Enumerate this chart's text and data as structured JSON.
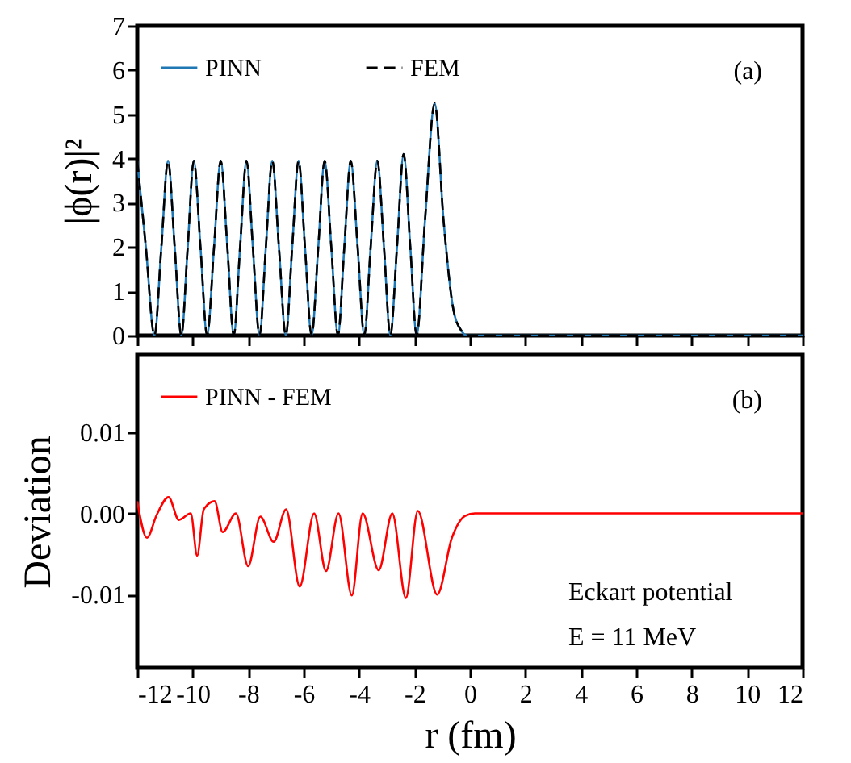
{
  "chart_data": [
    {
      "type": "line",
      "ylabel": "|ϕ(r)|²",
      "xlim": [
        -12,
        12
      ],
      "ylim": [
        0,
        7
      ],
      "xticks": [
        -12,
        -10,
        -8,
        -6,
        -4,
        -2,
        0,
        2,
        4,
        6,
        8,
        10,
        12
      ],
      "yticks": [
        0,
        1,
        2,
        3,
        4,
        5,
        6,
        7
      ],
      "tick_labels": "y",
      "legend": "top left",
      "annotations": [
        "(a)"
      ],
      "x": [
        -12,
        -11.69,
        -11.38,
        -11.13,
        -10.89,
        -10.65,
        -10.41,
        -10.18,
        -9.96,
        -9.72,
        -9.48,
        -9.23,
        -8.99,
        -8.75,
        -8.52,
        -8.29,
        -8.06,
        -7.83,
        -7.59,
        -7.36,
        -7.13,
        -6.89,
        -6.64,
        -6.41,
        -6.18,
        -5.95,
        -5.71,
        -5.47,
        -5.24,
        -5.0,
        -4.76,
        -4.53,
        -4.3,
        -4.05,
        -3.81,
        -3.58,
        -3.34,
        -3.1,
        -2.87,
        -2.63,
        -2.39,
        -2.15,
        -1.92,
        -1.62,
        -1.27,
        -0.95,
        -0.6,
        -0.3,
        -0.1,
        12
      ],
      "series": [
        {
          "name": "PINN",
          "color": "#1f77b4",
          "line_style": "solid",
          "values": [
            3.95,
            2,
            0,
            2,
            3.95,
            2,
            0,
            2,
            3.95,
            2,
            0,
            2,
            3.95,
            2,
            0,
            2,
            3.95,
            2,
            0,
            2,
            3.95,
            2,
            0,
            2,
            3.95,
            2,
            0,
            2,
            3.95,
            2,
            0,
            2,
            3.95,
            2,
            0,
            2,
            3.95,
            2,
            0,
            2,
            4.1,
            2,
            0,
            2.6,
            5.25,
            2.6,
            0.6,
            0.1,
            0,
            0
          ]
        },
        {
          "name": "FEM",
          "color": "#000000",
          "line_style": "dashed",
          "values": [
            3.95,
            2,
            0,
            2,
            3.95,
            2,
            0,
            2,
            3.95,
            2,
            0,
            2,
            3.95,
            2,
            0,
            2,
            3.95,
            2,
            0,
            2,
            3.95,
            2,
            0,
            2,
            3.95,
            2,
            0,
            2,
            3.95,
            2,
            0,
            2,
            3.95,
            2,
            0,
            2,
            3.95,
            2,
            0,
            2,
            4.1,
            2,
            0,
            2.6,
            5.25,
            2.6,
            0.6,
            0.1,
            0,
            0
          ]
        }
      ]
    },
    {
      "type": "line",
      "xlabel": "r (fm)",
      "ylabel": "Deviation",
      "xlim": [
        -12,
        12
      ],
      "ylim": [
        -0.019,
        0.0195
      ],
      "xticks": [
        -12,
        -10,
        -8,
        -6,
        -4,
        -2,
        0,
        2,
        4,
        6,
        8,
        10,
        12
      ],
      "yticks": [
        -0.01,
        {
          "value": 0,
          "label": "0.00"
        },
        0.01
      ],
      "legend": "top left",
      "annotations": [
        "(b)",
        "Eckart potential",
        "E = 11 MeV"
      ],
      "x": [
        -12,
        -11.65,
        -11.3,
        -10.87,
        -10.5,
        -10.07,
        -9.84,
        -9.6,
        -9.21,
        -8.92,
        -8.44,
        -8.0,
        -7.56,
        -7.08,
        -6.63,
        -6.14,
        -5.62,
        -5.19,
        -4.74,
        -4.26,
        -3.87,
        -3.29,
        -2.8,
        -2.31,
        -1.88,
        -1.18,
        -0.65,
        -0.17,
        0.18,
        12
      ],
      "series": [
        {
          "name": "PINN - FEM",
          "color": "#ff0000",
          "values": [
            0.0015,
            -0.003,
            -0.0002,
            0.002,
            -0.0008,
            0.0,
            -0.0052,
            0.0005,
            0.0015,
            -0.0023,
            0.0,
            -0.0065,
            -0.0004,
            -0.0035,
            0.0005,
            -0.009,
            0.0,
            -0.0071,
            0.0,
            -0.0101,
            0.0,
            -0.007,
            0.0,
            -0.0104,
            0.0003,
            -0.01,
            -0.003,
            -0.0003,
            0.0,
            0.0
          ]
        }
      ]
    }
  ]
}
